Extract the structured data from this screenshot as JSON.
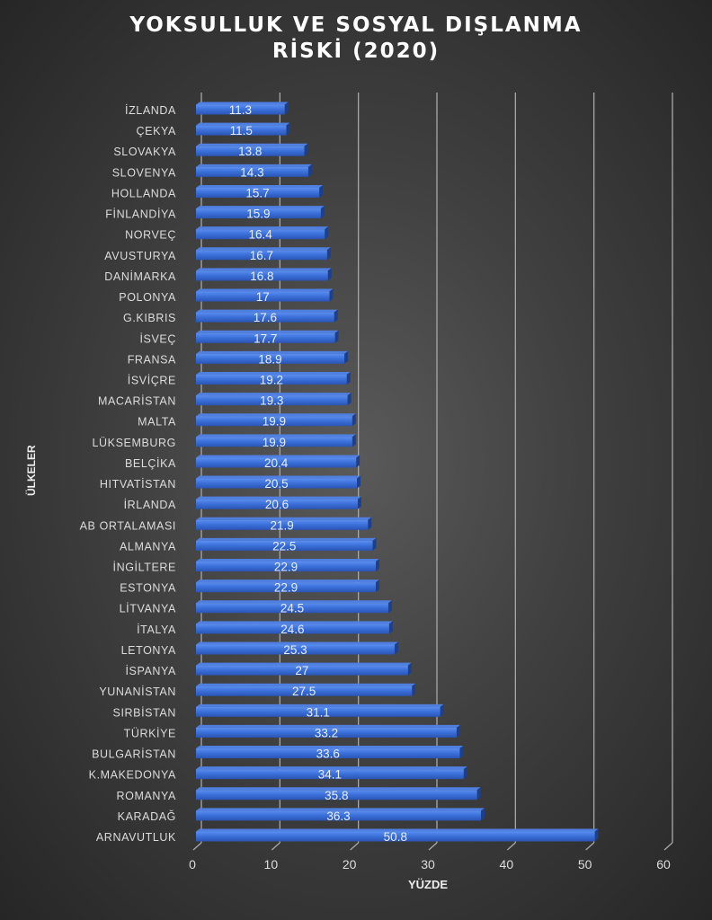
{
  "chart_data": {
    "type": "bar",
    "orientation": "horizontal",
    "title_line1": "YOKSULLUK VE SOSYAL DIŞLANMA",
    "title_line2": "RİSKİ (2020)",
    "xlabel": "YÜZDE",
    "ylabel": "ÜLKELER",
    "xlim": [
      0,
      60
    ],
    "xticks": [
      "0",
      "10",
      "20",
      "30",
      "40",
      "50",
      "60"
    ],
    "grid": true,
    "bar_color": "#3a6fd8",
    "categories": [
      "İZLANDA",
      "ÇEKYA",
      "SLOVAKYA",
      "SLOVENYA",
      "HOLLANDA",
      "FİNLANDİYA",
      "NORVEÇ",
      "AVUSTURYA",
      "DANİMARKA",
      "POLONYA",
      "G.KIBRIS",
      "İSVEÇ",
      "FRANSA",
      "İSVİÇRE",
      "MACARİSTAN",
      "MALTA",
      "LÜKSEMBURG",
      "BELÇİKA",
      "HITVATİSTAN",
      "İRLANDA",
      "AB ORTALAMASI",
      "ALMANYA",
      "İNGİLTERE",
      "ESTONYA",
      "LİTVANYA",
      "İTALYA",
      "LETONYA",
      "İSPANYA",
      "YUNANİSTAN",
      "SIRBİSTAN",
      "TÜRKİYE",
      "BULGARİSTAN",
      "K.MAKEDONYA",
      "ROMANYA",
      "KARADAĞ",
      "ARNAVUTLUK"
    ],
    "values": [
      11.3,
      11.5,
      13.8,
      14.3,
      15.7,
      15.9,
      16.4,
      16.7,
      16.8,
      17,
      17.6,
      17.7,
      18.9,
      19.2,
      19.3,
      19.9,
      19.9,
      20.4,
      20.5,
      20.6,
      21.9,
      22.5,
      22.9,
      22.9,
      24.5,
      24.6,
      25.3,
      27,
      27.5,
      31.1,
      33.2,
      33.6,
      34.1,
      35.8,
      36.3,
      50.8
    ]
  }
}
